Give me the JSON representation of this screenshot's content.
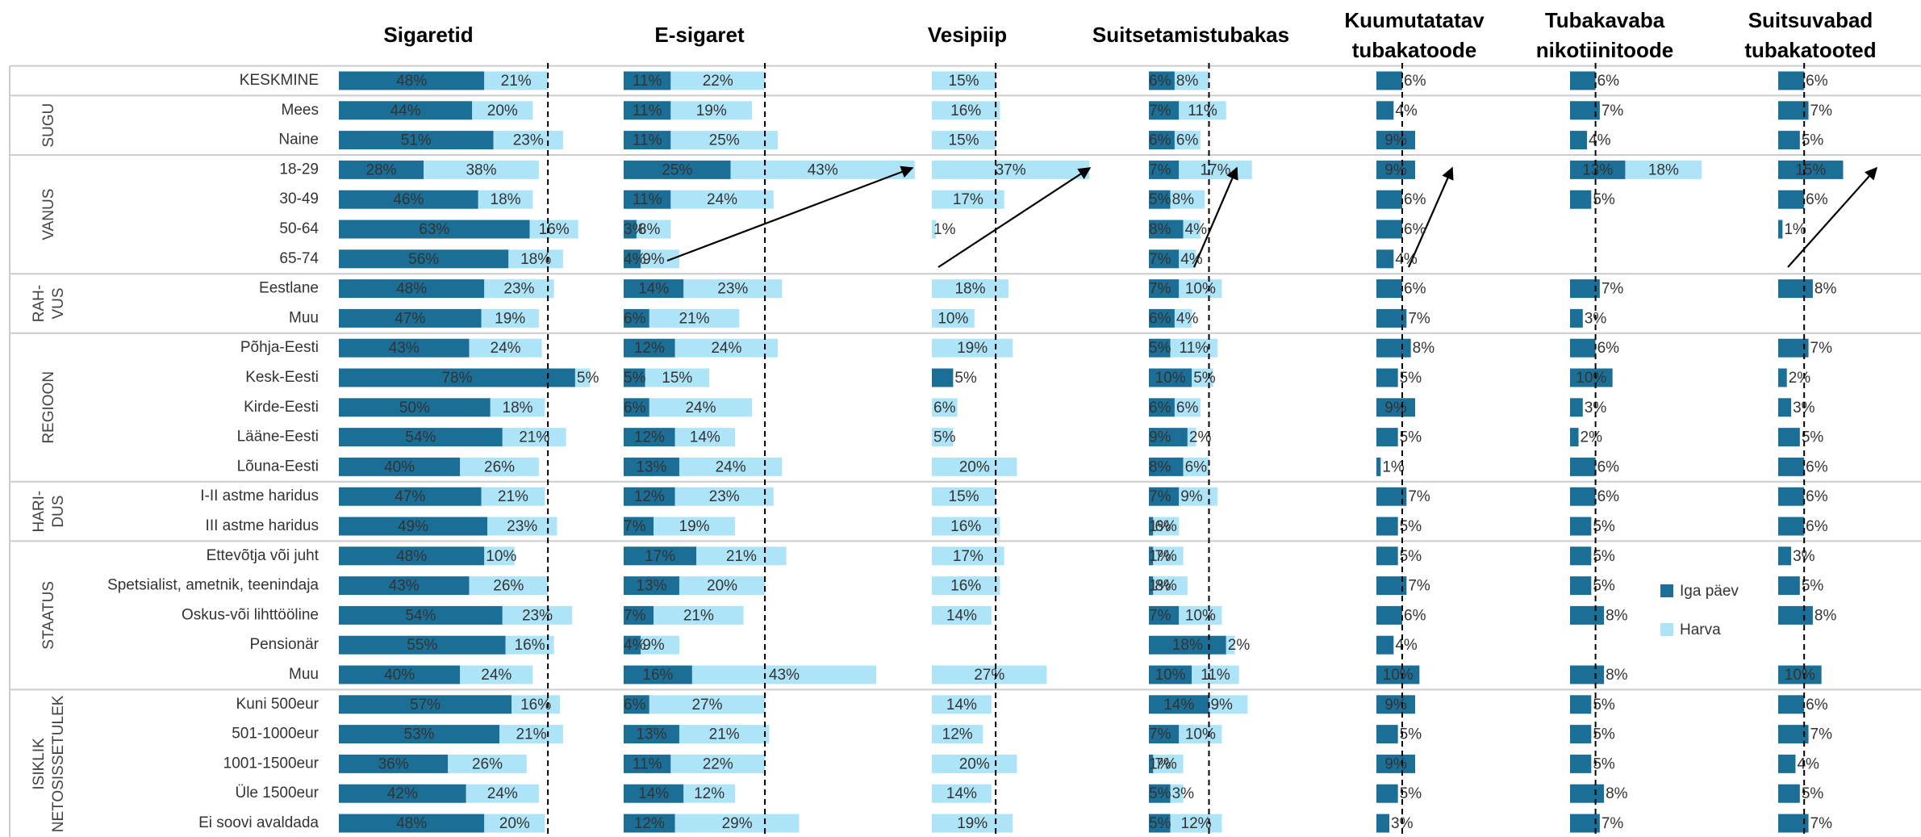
{
  "total_row": "KESKMINE",
  "groups": [
    {
      "label": [
        "SUGU"
      ],
      "rows": [
        "Mees",
        "Naine"
      ]
    },
    {
      "label": [
        "VANUS"
      ],
      "rows": [
        "18-29",
        "30-49",
        "50-64",
        "65-74"
      ]
    },
    {
      "label": [
        "RAH-",
        "VUS"
      ],
      "rows": [
        "Eestlane",
        "Muu"
      ]
    },
    {
      "label": [
        "REGIOON"
      ],
      "rows": [
        "Põhja-Eesti",
        "Kesk-Eesti",
        "Kirde-Eesti",
        "Lääne-Eesti",
        "Lõuna-Eesti"
      ]
    },
    {
      "label": [
        "HARI-",
        "DUS"
      ],
      "rows": [
        "I-II astme haridus",
        "III astme haridus"
      ]
    },
    {
      "label": [
        "STAATUS"
      ],
      "rows": [
        "Ettevõtja või juht",
        "Spetsialist, ametnik, teenindaja",
        "Oskus-või lihttööline",
        "Pensionär",
        "Muu"
      ]
    },
    {
      "label": [
        "ISIKLIK",
        "NETOSISSETULEK"
      ],
      "rows": [
        "Kuni 500eur",
        "501-1000eur",
        "1001-1500eur",
        "Üle 1500eur",
        "Ei soovi avaldada"
      ]
    }
  ],
  "legend": [
    {
      "name": "Iga päev",
      "color": "#1b6f97"
    },
    {
      "name": "Harva",
      "color": "#aee4f8"
    }
  ],
  "chart_data": [
    {
      "type": "bar",
      "title": [
        "Sigaretid"
      ],
      "xlim": [
        0,
        94
      ],
      "series": [
        {
          "values": [
            48,
            44,
            51,
            28,
            46,
            63,
            56,
            48,
            47,
            43,
            78,
            50,
            54,
            40,
            47,
            49,
            48,
            43,
            54,
            55,
            40,
            57,
            53,
            36,
            42,
            48
          ],
          "value_labels": [
            "48%",
            "44%",
            "51%",
            "28%",
            "46%",
            "63%",
            "56%",
            "48%",
            "47%",
            "43%",
            "78%",
            "50%",
            "54%",
            "40%",
            "47%",
            "49%",
            "48%",
            "43%",
            "54%",
            "55%",
            "40%",
            "57%",
            "53%",
            "36%",
            "42%",
            "48%"
          ]
        },
        {
          "values": [
            21,
            20,
            23,
            38,
            18,
            16,
            18,
            23,
            19,
            24,
            5,
            18,
            21,
            26,
            21,
            23,
            10,
            26,
            23,
            16,
            24,
            16,
            21,
            26,
            24,
            20
          ],
          "value_labels": [
            "21%",
            "20%",
            "23%",
            "38%",
            "18%",
            "16%",
            "18%",
            "23%",
            "19%",
            "24%",
            "5%",
            "18%",
            "21%",
            "26%",
            "21%",
            "23%",
            "10%",
            "26%",
            "23%",
            "16%",
            "24%",
            "16%",
            "21%",
            "26%",
            "24%",
            "20%"
          ]
        }
      ]
    },
    {
      "type": "bar",
      "title": [
        "E-sigaret"
      ],
      "xlim": [
        0,
        72
      ],
      "series": [
        {
          "values": [
            11,
            11,
            11,
            25,
            11,
            3,
            4,
            14,
            6,
            12,
            5,
            6,
            12,
            13,
            12,
            7,
            17,
            13,
            7,
            4,
            16,
            6,
            13,
            11,
            14,
            12
          ],
          "value_labels": [
            "11%",
            "11%",
            "11%",
            "25%",
            "11%",
            "3%",
            "4%",
            "14%",
            "6%",
            "12%",
            "5%",
            "6%",
            "12%",
            "13%",
            "12%",
            "7%",
            "17%",
            "13%",
            "7%",
            "4%",
            "16%",
            "6%",
            "13%",
            "11%",
            "14%",
            "12%"
          ]
        },
        {
          "values": [
            22,
            19,
            25,
            43,
            24,
            8,
            9,
            23,
            21,
            24,
            15,
            24,
            14,
            24,
            23,
            19,
            21,
            20,
            21,
            9,
            43,
            27,
            21,
            22,
            12,
            29
          ],
          "value_labels": [
            "22%",
            "19%",
            "25%",
            "43%",
            "24%",
            "8%",
            "9%",
            "23%",
            "21%",
            "24%",
            "15%",
            "24%",
            "14%",
            "24%",
            "23%",
            "19%",
            "21%",
            "20%",
            "21%",
            "9%",
            "43%",
            "27%",
            "21%",
            "22%",
            "12%",
            "29%"
          ]
        }
      ]
    },
    {
      "type": "bar",
      "title": [
        "Vesipiip"
      ],
      "xlim": [
        0,
        51
      ],
      "series": [
        {
          "values": [
            null,
            null,
            null,
            null,
            null,
            null,
            null,
            null,
            null,
            null,
            5,
            null,
            null,
            null,
            null,
            null,
            null,
            null,
            null,
            null,
            null,
            null,
            null,
            null,
            null,
            null
          ],
          "value_labels": [
            null,
            null,
            null,
            null,
            null,
            null,
            null,
            null,
            null,
            null,
            "5%",
            null,
            null,
            null,
            null,
            null,
            null,
            null,
            null,
            null,
            null,
            null,
            null,
            null,
            null,
            null
          ]
        },
        {
          "values": [
            15,
            16,
            15,
            37,
            17,
            1,
            null,
            18,
            10,
            19,
            null,
            6,
            5,
            20,
            15,
            16,
            17,
            16,
            14,
            null,
            27,
            14,
            12,
            20,
            14,
            19
          ],
          "value_labels": [
            "15%",
            "16%",
            "15%",
            "37%",
            "17%",
            "1%",
            null,
            "18%",
            "10%",
            "19%",
            null,
            "6%",
            "5%",
            "20%",
            "15%",
            "16%",
            "17%",
            "16%",
            "14%",
            null,
            "27%",
            "14%",
            "12%",
            "20%",
            "14%",
            "19%"
          ]
        }
      ]
    },
    {
      "type": "bar",
      "title": [
        "Suitsetamistubakas"
      ],
      "xlim": [
        0,
        53
      ],
      "series": [
        {
          "values": [
            6,
            7,
            6,
            7,
            5,
            8,
            7,
            7,
            6,
            5,
            10,
            6,
            9,
            8,
            7,
            1,
            1,
            1,
            7,
            18,
            10,
            14,
            7,
            1,
            5,
            5
          ],
          "value_labels": [
            "6%",
            "7%",
            "6%",
            "7%",
            "5%",
            "8%",
            "7%",
            "7%",
            "6%",
            "5%",
            "10%",
            "6%",
            "9%",
            "8%",
            "7%",
            "1%",
            "1%",
            "1%",
            "7%",
            "18%",
            "10%",
            "14%",
            "7%",
            "1%",
            "5%",
            "5%"
          ]
        },
        {
          "values": [
            8,
            11,
            6,
            17,
            8,
            4,
            4,
            10,
            4,
            11,
            5,
            6,
            2,
            6,
            9,
            6,
            7,
            8,
            10,
            2,
            11,
            9,
            10,
            7,
            3,
            12
          ],
          "value_labels": [
            "8%",
            "11%",
            "6%",
            "17%",
            "8%",
            "4%",
            "4%",
            "10%",
            "4%",
            "11%",
            "5%",
            "6%",
            "2%",
            "6%",
            "9%",
            "6%",
            "7%",
            "8%",
            "10%",
            "2%",
            "11%",
            "9%",
            "10%",
            "7%",
            "3%",
            "12%"
          ]
        }
      ]
    },
    {
      "type": "bar",
      "title": [
        "Kuumutatatav",
        "tubakatoode"
      ],
      "xlim": [
        0,
        45
      ],
      "series": [
        {
          "values": [
            6,
            4,
            9,
            9,
            6,
            6,
            4,
            6,
            7,
            8,
            5,
            9,
            5,
            1,
            7,
            5,
            5,
            7,
            6,
            4,
            10,
            9,
            5,
            9,
            5,
            3
          ],
          "value_labels": [
            "6%",
            "4%",
            "9%",
            "9%",
            "6%",
            "6%",
            "4%",
            "6%",
            "7%",
            "8%",
            "5%",
            "9%",
            "5%",
            "1%",
            "7%",
            "5%",
            "5%",
            "7%",
            "6%",
            "4%",
            "10%",
            "9%",
            "5%",
            "9%",
            "5%",
            "3%"
          ]
        },
        {
          "values": [
            null,
            null,
            null,
            null,
            null,
            null,
            null,
            null,
            null,
            null,
            null,
            null,
            null,
            null,
            null,
            null,
            null,
            null,
            null,
            null,
            null,
            null,
            null,
            null,
            null,
            null
          ],
          "value_labels": [
            null,
            null,
            null,
            null,
            null,
            null,
            null,
            null,
            null,
            null,
            null,
            null,
            null,
            null,
            null,
            null,
            null,
            null,
            null,
            null,
            null,
            null,
            null,
            null,
            null,
            null
          ]
        }
      ]
    },
    {
      "type": "bar",
      "title": [
        "Tubakavaba",
        "nikotiinitoode"
      ],
      "xlim": [
        0,
        49
      ],
      "series": [
        {
          "values": [
            6,
            7,
            4,
            13,
            5,
            null,
            null,
            7,
            3,
            6,
            10,
            3,
            2,
            6,
            6,
            5,
            5,
            5,
            8,
            null,
            8,
            5,
            5,
            5,
            8,
            7
          ],
          "value_labels": [
            "6%",
            "7%",
            "4%",
            "13%",
            "5%",
            null,
            null,
            "7%",
            "3%",
            "6%",
            "10%",
            "3%",
            "2%",
            "6%",
            "6%",
            "5%",
            "5%",
            "5%",
            "8%",
            null,
            "8%",
            "5%",
            "5%",
            "5%",
            "8%",
            "7%"
          ]
        },
        {
          "values": [
            null,
            null,
            null,
            18,
            null,
            null,
            null,
            null,
            null,
            null,
            null,
            null,
            null,
            null,
            null,
            null,
            null,
            null,
            null,
            null,
            null,
            null,
            null,
            null,
            null,
            null
          ],
          "value_labels": [
            null,
            null,
            null,
            "18%",
            null,
            null,
            null,
            null,
            null,
            null,
            null,
            null,
            null,
            null,
            null,
            null,
            null,
            null,
            null,
            null,
            null,
            null,
            null,
            null,
            null,
            null
          ]
        }
      ]
    },
    {
      "type": "bar",
      "title": [
        "Suitsuvabad",
        "tubakatooted"
      ],
      "xlim": [
        0,
        33
      ],
      "series": [
        {
          "values": [
            6,
            7,
            5,
            15,
            6,
            1,
            null,
            8,
            null,
            7,
            2,
            3,
            5,
            6,
            6,
            6,
            3,
            5,
            8,
            null,
            10,
            6,
            7,
            4,
            5,
            7
          ],
          "value_labels": [
            "6%",
            "7%",
            "5%",
            "15%",
            "6%",
            "1%",
            null,
            "8%",
            null,
            "7%",
            "2%",
            "3%",
            "5%",
            "6%",
            "6%",
            "6%",
            "3%",
            "5%",
            "8%",
            null,
            "10%",
            "6%",
            "7%",
            "4%",
            "5%",
            "7%"
          ]
        },
        {
          "values": [
            null,
            null,
            null,
            null,
            null,
            null,
            null,
            null,
            null,
            null,
            null,
            null,
            null,
            null,
            null,
            null,
            null,
            null,
            null,
            null,
            null,
            null,
            null,
            null,
            null,
            null
          ],
          "value_labels": [
            null,
            null,
            null,
            null,
            null,
            null,
            null,
            null,
            null,
            null,
            null,
            null,
            null,
            null,
            null,
            null,
            null,
            null,
            null,
            null,
            null,
            null,
            null,
            null,
            null,
            null
          ]
        }
      ]
    }
  ]
}
